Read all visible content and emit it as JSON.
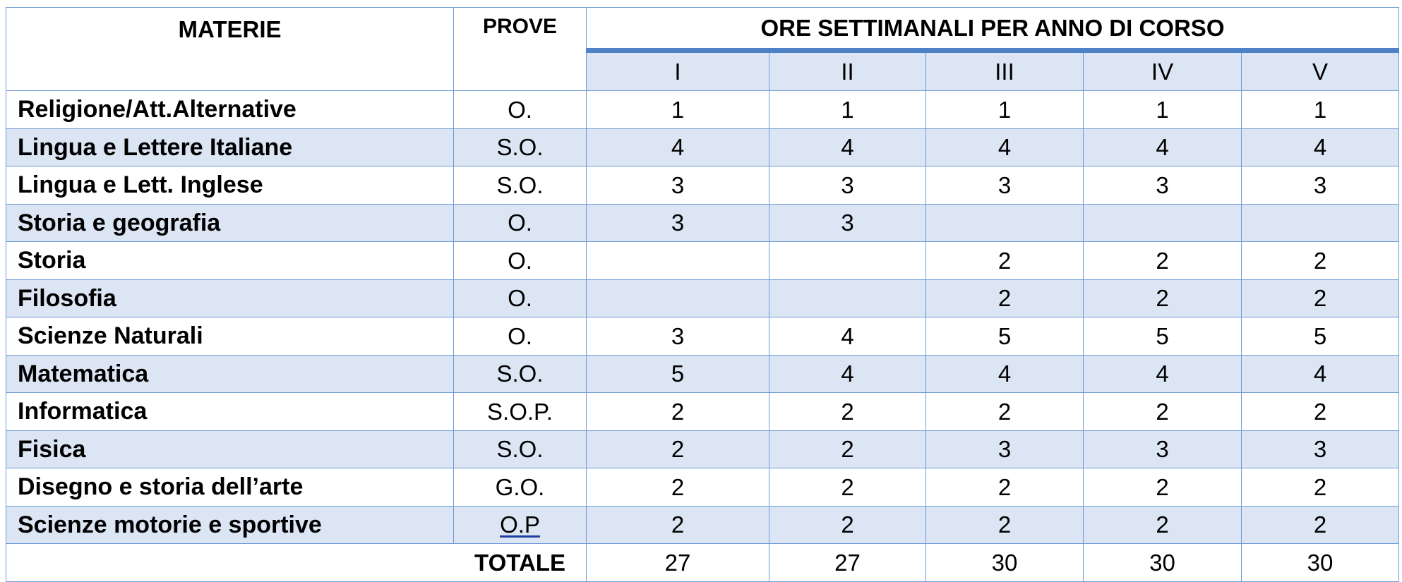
{
  "header": {
    "materie": "MATERIE",
    "prove": "PROVE",
    "title": "ORE SETTIMANALI PER ANNO DI CORSO",
    "years": [
      "I",
      "II",
      "III",
      "IV",
      "V"
    ]
  },
  "rows": [
    {
      "subject": "Religione/Att.Alternative",
      "prove": "O.",
      "hours": [
        "1",
        "1",
        "1",
        "1",
        "1"
      ]
    },
    {
      "subject": "Lingua e Lettere Italiane",
      "prove": "S.O.",
      "hours": [
        "4",
        "4",
        "4",
        "4",
        "4"
      ]
    },
    {
      "subject": "Lingua e Lett. Inglese",
      "prove": "S.O.",
      "hours": [
        "3",
        "3",
        "3",
        "3",
        "3"
      ]
    },
    {
      "subject": "Storia e geografia",
      "prove": "O.",
      "hours": [
        "3",
        "3",
        "",
        "",
        ""
      ]
    },
    {
      "subject": "Storia",
      "prove": "O.",
      "hours": [
        "",
        "",
        "2",
        "2",
        "2"
      ]
    },
    {
      "subject": "Filosofia",
      "prove": "O.",
      "hours": [
        "",
        "",
        "2",
        "2",
        "2"
      ]
    },
    {
      "subject": "Scienze Naturali",
      "prove": "O.",
      "hours": [
        "3",
        "4",
        "5",
        "5",
        "5"
      ]
    },
    {
      "subject": "Matematica",
      "prove": "S.O.",
      "hours": [
        "5",
        "4",
        "4",
        "4",
        "4"
      ]
    },
    {
      "subject": "Informatica",
      "prove": "S.O.P.",
      "hours": [
        "2",
        "2",
        "2",
        "2",
        "2"
      ]
    },
    {
      "subject": "Fisica",
      "prove": "S.O.",
      "hours": [
        "2",
        "2",
        "3",
        "3",
        "3"
      ]
    },
    {
      "subject": "Disegno e storia dell’arte",
      "prove": "G.O.",
      "hours": [
        "2",
        "2",
        "2",
        "2",
        "2"
      ]
    },
    {
      "subject": "Scienze motorie e sportive",
      "prove": "O.P",
      "hours": [
        "2",
        "2",
        "2",
        "2",
        "2"
      ]
    }
  ],
  "totals": {
    "label": "TOTALE",
    "values": [
      "27",
      "27",
      "30",
      "30",
      "30"
    ]
  }
}
